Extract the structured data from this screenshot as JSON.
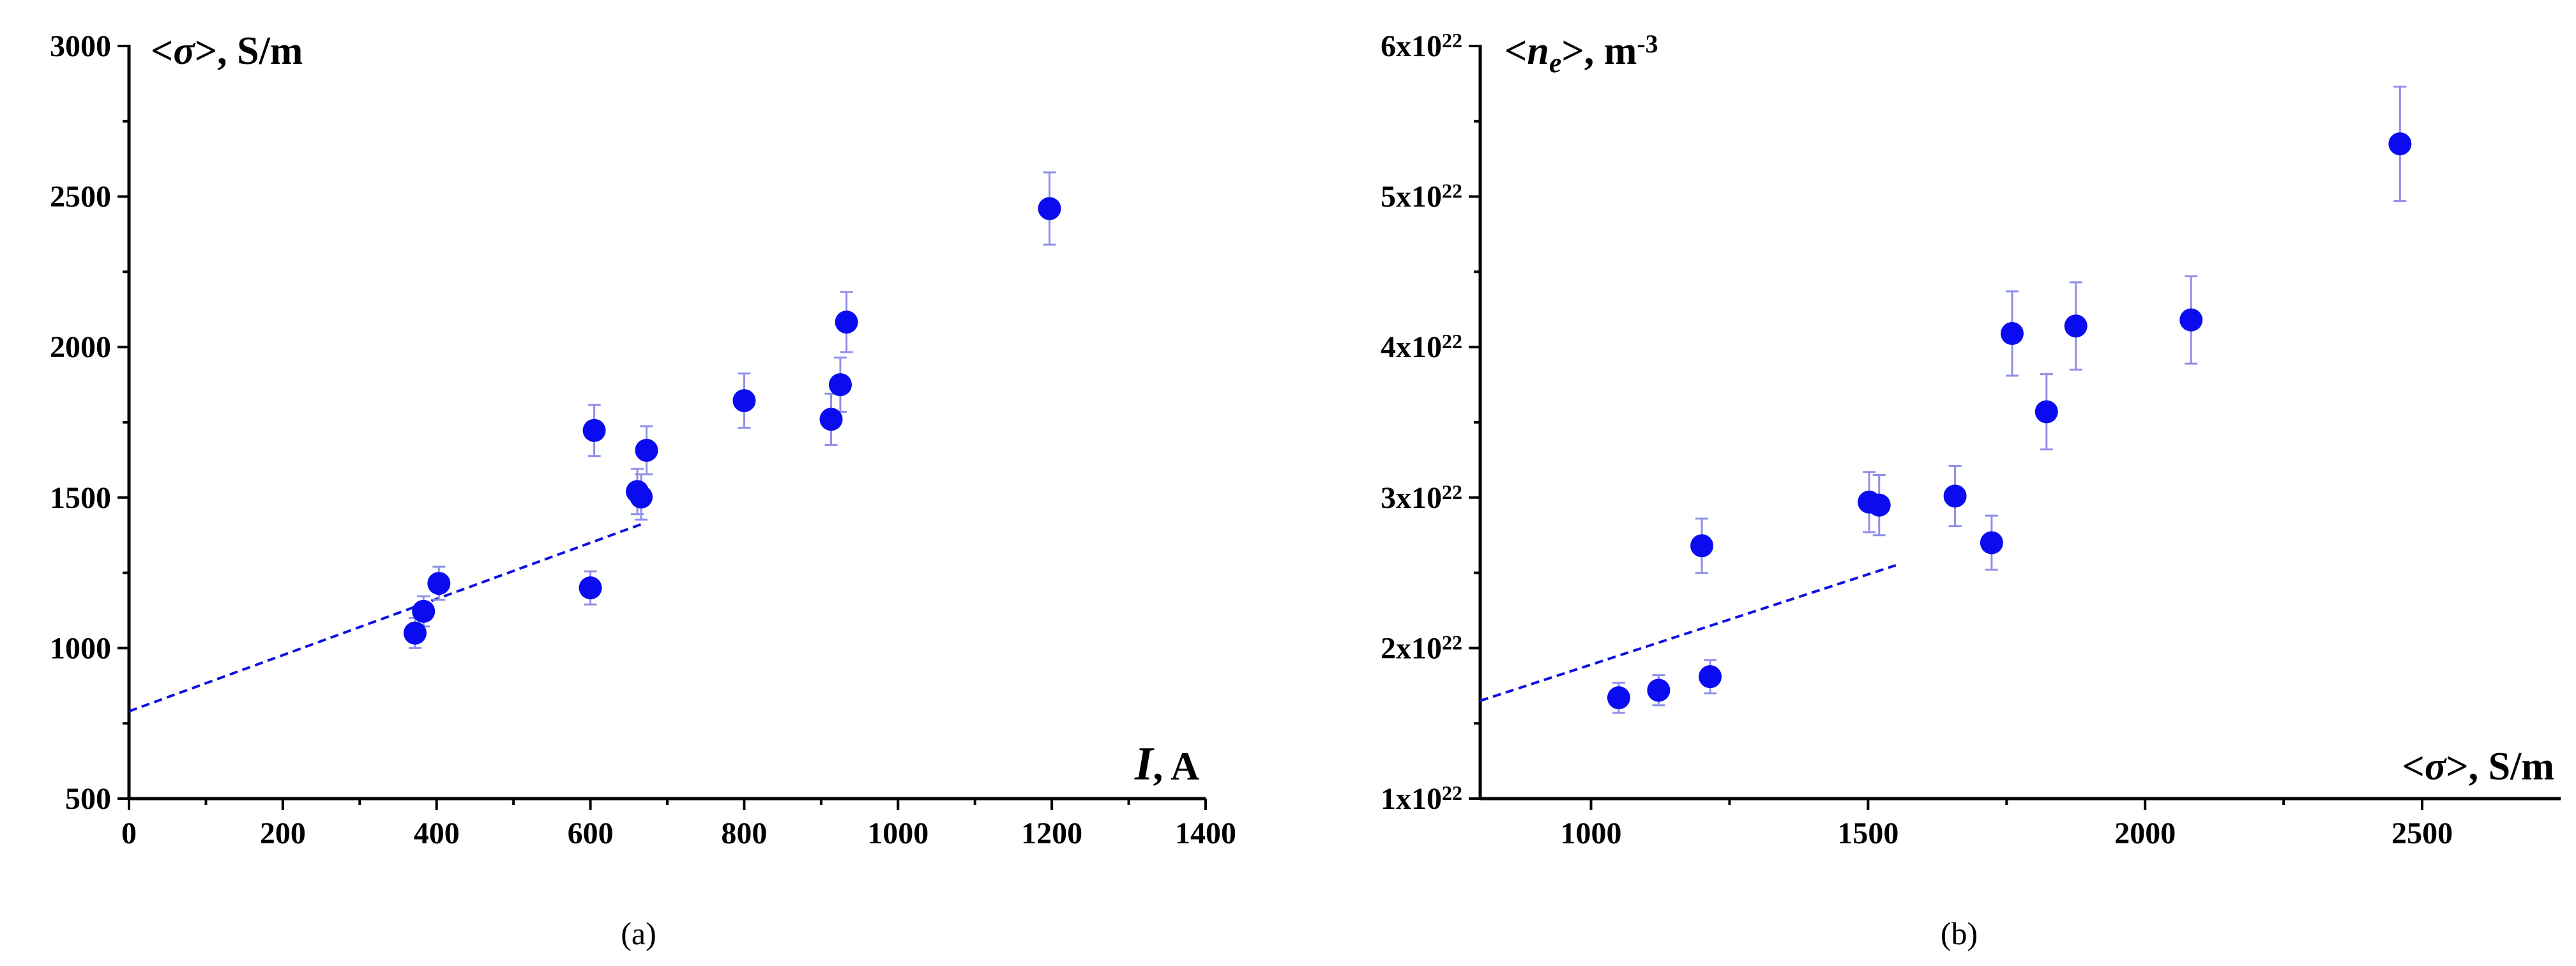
{
  "chart_data": [
    {
      "type": "scatter",
      "panel_label": "(a)",
      "ylabel": {
        "prefix": "<",
        "symbol": "σ",
        "suffix": ">, S/m"
      },
      "xlabel": {
        "symbol": "I",
        "suffix": ", A"
      },
      "xlim": [
        0,
        1400
      ],
      "ylim": [
        500,
        3000
      ],
      "x_ticks": [
        0,
        200,
        400,
        600,
        800,
        1000,
        1200,
        1400
      ],
      "y_ticks": [
        500,
        1000,
        1500,
        2000,
        2500,
        3000
      ],
      "x_tick_labels": [
        "0",
        "200",
        "400",
        "600",
        "800",
        "1000",
        "1200",
        "1400"
      ],
      "y_tick_labels": [
        "500",
        "1000",
        "1500",
        "2000",
        "2500",
        "3000"
      ],
      "marker_color": "#0b0bf0",
      "error_color": "#8f8fe8",
      "points": [
        {
          "x": 372,
          "y": 1050,
          "err": 50
        },
        {
          "x": 383,
          "y": 1122,
          "err": 50
        },
        {
          "x": 403,
          "y": 1215,
          "err": 55
        },
        {
          "x": 600,
          "y": 1200,
          "err": 55
        },
        {
          "x": 605,
          "y": 1723,
          "err": 85
        },
        {
          "x": 661,
          "y": 1520,
          "err": 75
        },
        {
          "x": 666,
          "y": 1502,
          "err": 75
        },
        {
          "x": 673,
          "y": 1657,
          "err": 80
        },
        {
          "x": 800,
          "y": 1822,
          "err": 90
        },
        {
          "x": 913,
          "y": 1760,
          "err": 85
        },
        {
          "x": 925,
          "y": 1875,
          "err": 90
        },
        {
          "x": 933,
          "y": 2083,
          "err": 100
        },
        {
          "x": 1197,
          "y": 2460,
          "err": 120
        }
      ],
      "trend_line": {
        "x": [
          0,
          670
        ],
        "y": [
          790,
          1415
        ]
      }
    },
    {
      "type": "scatter",
      "panel_label": "(b)",
      "ylabel": {
        "prefix": "<",
        "symbol": "n",
        "subscript": "e",
        "suffix": ">, m",
        "superscript": "-3"
      },
      "xlabel": {
        "prefix": "<",
        "symbol": "σ",
        "suffix": ">, S/m"
      },
      "xlim": [
        800,
        2750
      ],
      "ylim": [
        1e+22,
        6e+22
      ],
      "x_ticks": [
        1000,
        1500,
        2000,
        2500
      ],
      "x_minor_ticks": [
        1250,
        1750,
        2250
      ],
      "y_ticks": [
        1e+22,
        2e+22,
        3e+22,
        4e+22,
        5e+22,
        6e+22
      ],
      "x_tick_labels": [
        "1000",
        "1500",
        "2000",
        "2500"
      ],
      "y_tick_labels": [
        {
          "base": "1x10",
          "exp": "22"
        },
        {
          "base": "2x10",
          "exp": "22"
        },
        {
          "base": "3x10",
          "exp": "22"
        },
        {
          "base": "4x10",
          "exp": "22"
        },
        {
          "base": "5x10",
          "exp": "22"
        },
        {
          "base": "6x10",
          "exp": "22"
        }
      ],
      "marker_color": "#0b0bf0",
      "error_color": "#8f8fe8",
      "points": [
        {
          "x": 1050,
          "y": 1.67e+22,
          "err": 1e+21
        },
        {
          "x": 1122,
          "y": 1.72e+22,
          "err": 1e+21
        },
        {
          "x": 1200,
          "y": 2.68e+22,
          "err": 1.8e+21
        },
        {
          "x": 1215,
          "y": 1.81e+22,
          "err": 1.1e+21
        },
        {
          "x": 1502,
          "y": 2.97e+22,
          "err": 2e+21
        },
        {
          "x": 1520,
          "y": 2.95e+22,
          "err": 2e+21
        },
        {
          "x": 1657,
          "y": 3.01e+22,
          "err": 2e+21
        },
        {
          "x": 1723,
          "y": 2.7e+22,
          "err": 1.8e+21
        },
        {
          "x": 1760,
          "y": 4.09e+22,
          "err": 2.8e+21
        },
        {
          "x": 1822,
          "y": 3.57e+22,
          "err": 2.5e+21
        },
        {
          "x": 1875,
          "y": 4.14e+22,
          "err": 2.9e+21
        },
        {
          "x": 2083,
          "y": 4.18e+22,
          "err": 2.9e+21
        },
        {
          "x": 2460,
          "y": 5.35e+22,
          "err": 3.8e+21
        }
      ],
      "trend_line": {
        "x": [
          800,
          1550
        ],
        "y": [
          1.65e+22,
          2.55e+22
        ]
      }
    }
  ]
}
